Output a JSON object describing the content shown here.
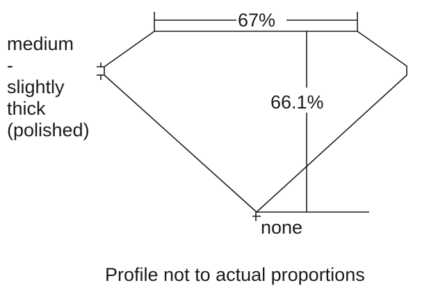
{
  "labels": {
    "table_percent": "67%",
    "depth_percent": "66.1%",
    "girdle_lines": [
      "medium",
      "-",
      "slightly",
      "thick",
      "(polished)"
    ],
    "culet": "none",
    "footnote": "Profile not to actual proportions"
  },
  "colors": {
    "line": "#1a1a1a",
    "background": "#ffffff"
  }
}
